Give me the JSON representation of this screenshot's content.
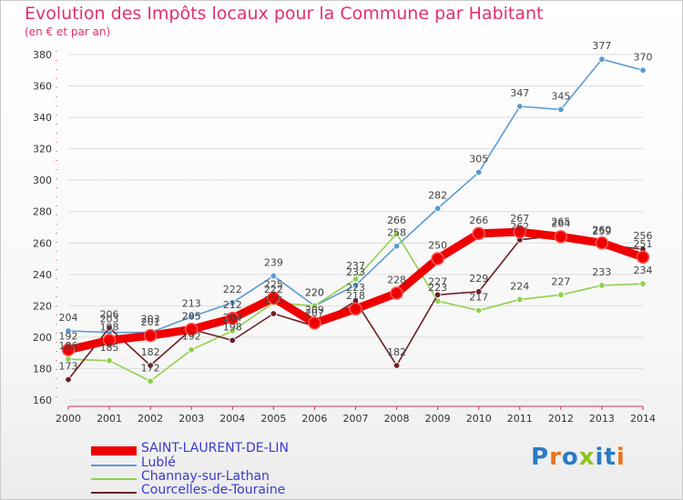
{
  "chart_data": {
    "type": "line",
    "title": "Evolution des Impôts locaux pour la Commune par Habitant",
    "subtitle": "(en € et par an)",
    "xlabel": "",
    "ylabel": "",
    "ylim": [
      160,
      380
    ],
    "y_ticks": [
      160,
      180,
      200,
      220,
      240,
      260,
      280,
      300,
      320,
      340,
      360,
      380
    ],
    "x": [
      "2000",
      "2001",
      "2002",
      "2003",
      "2004",
      "2005",
      "2006",
      "2007",
      "2008",
      "2009",
      "2010",
      "2011",
      "2012",
      "2013",
      "2014"
    ],
    "grid": "horizontal",
    "legend_position": "bottom-left",
    "series": [
      {
        "name": "SAINT-LAURENT-DE-LIN",
        "color": "#ee0000",
        "values": [
          192,
          198,
          201,
          205,
          212,
          225,
          209,
          218,
          228,
          250,
          266,
          267,
          264,
          260,
          251
        ]
      },
      {
        "name": "Lublé",
        "color": "#5a9bd5",
        "values": [
          204,
          203,
          203,
          213,
          222,
          239,
          220,
          233,
          258,
          282,
          305,
          347,
          345,
          377,
          370
        ]
      },
      {
        "name": "Channay-sur-Lathan",
        "color": "#8fd14f",
        "values": [
          186,
          185,
          172,
          192,
          204,
          222,
          220,
          237,
          266,
          223,
          217,
          224,
          227,
          233,
          234
        ]
      },
      {
        "name": "Courcelles-de-Touraine",
        "color": "#6b1f24",
        "values": [
          173,
          206,
          182,
          205,
          198,
          215,
          207,
          223,
          182,
          227,
          229,
          262,
          265,
          259,
          256
        ]
      }
    ]
  },
  "logo": {
    "text": "Proxiti",
    "colors": [
      "#2b7bc4",
      "#e8731e",
      "#2b7bc4",
      "#8fc31f",
      "#2b7bc4",
      "#2b7bc4",
      "#e8731e"
    ]
  }
}
